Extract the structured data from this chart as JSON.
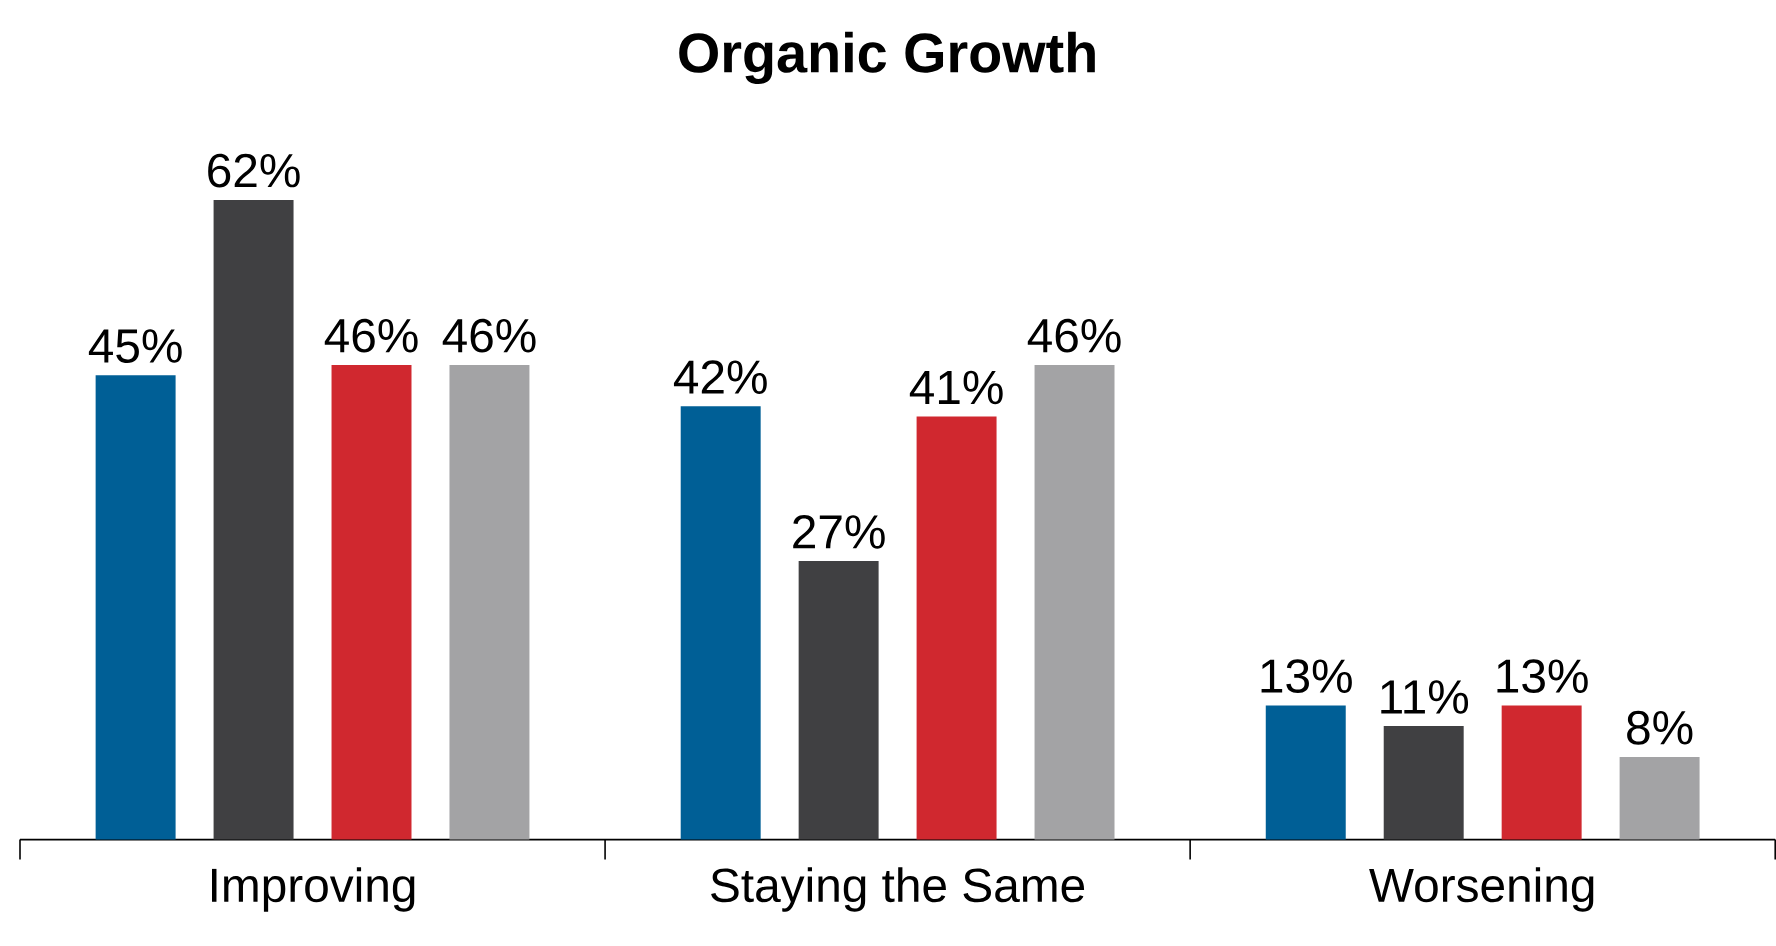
{
  "chart_data": {
    "type": "bar",
    "title": "Organic Growth",
    "categories": [
      "Improving",
      "Staying the Same",
      "Worsening"
    ],
    "series": [
      {
        "color": "#005f96",
        "values": [
          45,
          42,
          13
        ],
        "value_labels": [
          "45%",
          "42%",
          "13%"
        ]
      },
      {
        "color": "#404042",
        "values": [
          62,
          27,
          11
        ],
        "value_labels": [
          "62%",
          "27%",
          "11%"
        ]
      },
      {
        "color": "#d0282f",
        "values": [
          46,
          41,
          13
        ],
        "value_labels": [
          "46%",
          "41%",
          "13%"
        ]
      },
      {
        "color": "#a3a3a5",
        "values": [
          46,
          46,
          8
        ],
        "value_labels": [
          "46%",
          "46%",
          "8%"
        ]
      }
    ],
    "tick_labels": "x"
  }
}
